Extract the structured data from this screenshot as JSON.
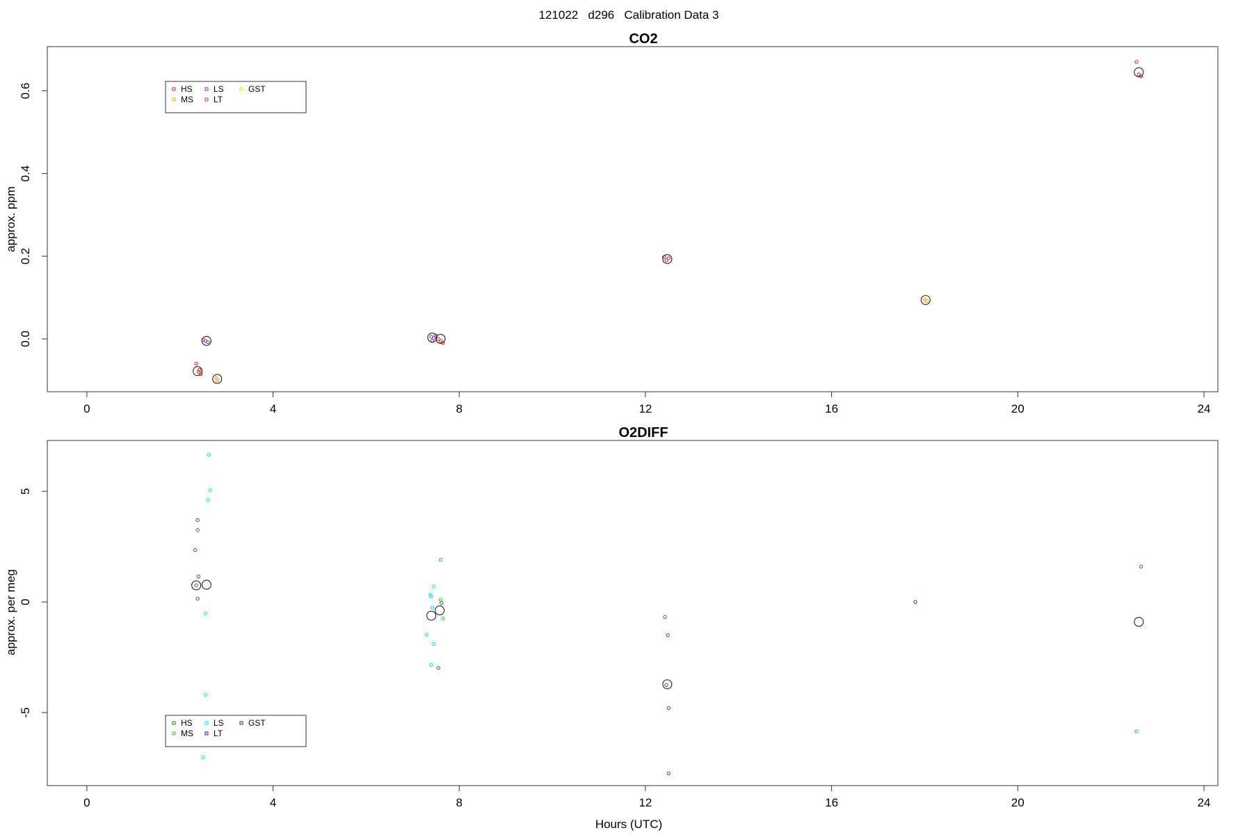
{
  "figure_title": "121022   d296   Calibration Data 3",
  "chart_data": [
    {
      "type": "scatter",
      "title": "CO2",
      "xlabel": "",
      "ylabel": "approx. ppm",
      "xlim": [
        -0.85,
        24.3
      ],
      "ylim": [
        -0.128,
        0.707
      ],
      "xticks": [
        0,
        4,
        8,
        12,
        16,
        20,
        24
      ],
      "yticks": [
        0.0,
        0.2,
        0.4,
        0.6
      ],
      "ytick_labels": [
        "0.0",
        "0.2",
        "0.4",
        "0.6"
      ],
      "legend": {
        "placement": "top-left",
        "entries": [
          {
            "label": "HS",
            "color": "#e41a1c"
          },
          {
            "label": "MS",
            "color": "#ff9f00"
          },
          {
            "label": "LS",
            "color": "#a020f0"
          },
          {
            "label": "LT",
            "color": "#c0392b"
          },
          {
            "label": "GST",
            "color": "#ffd700"
          }
        ]
      },
      "series": [
        {
          "name": "HS",
          "color": "#e41a1c",
          "points": [
            [
              2.35,
              -0.06
            ],
            [
              2.4,
              -0.08
            ],
            [
              2.45,
              -0.085
            ],
            [
              2.42,
              -0.075
            ],
            [
              7.6,
              -0.005
            ],
            [
              7.65,
              -0.01
            ],
            [
              12.45,
              0.19
            ],
            [
              12.5,
              0.195
            ],
            [
              22.55,
              0.67
            ],
            [
              22.65,
              0.635
            ],
            [
              22.6,
              0.64
            ]
          ]
        },
        {
          "name": "MS",
          "color": "#ff9f00",
          "points": [
            [
              2.78,
              -0.095
            ],
            [
              2.8,
              -0.1
            ],
            [
              18.0,
              0.095
            ],
            [
              18.05,
              0.092
            ]
          ]
        },
        {
          "name": "LS",
          "color": "#a020f0",
          "points": [
            [
              2.55,
              -0.005
            ],
            [
              2.6,
              -0.008
            ],
            [
              7.4,
              0.005
            ],
            [
              7.45,
              0.002
            ],
            [
              7.5,
              0.008
            ],
            [
              7.42,
              -0.005
            ]
          ]
        },
        {
          "name": "LT",
          "color": "#c0392b",
          "points": [
            [
              2.5,
              -0.002
            ],
            [
              7.55,
              0.0
            ],
            [
              12.4,
              0.198
            ]
          ]
        },
        {
          "name": "GST",
          "color": "#ffd700",
          "points": []
        }
      ],
      "means": [
        [
          2.38,
          -0.078
        ],
        [
          2.57,
          -0.005
        ],
        [
          2.8,
          -0.097
        ],
        [
          7.42,
          0.003
        ],
        [
          7.6,
          0.0
        ],
        [
          12.47,
          0.193
        ],
        [
          18.02,
          0.094
        ],
        [
          22.6,
          0.645
        ]
      ]
    },
    {
      "type": "scatter",
      "title": "O2DIFF",
      "xlabel": "Hours (UTC)",
      "ylabel": "approx. per meg",
      "xlim": [
        -0.85,
        24.3
      ],
      "ylim": [
        -8.3,
        7.3
      ],
      "xticks": [
        0,
        4,
        8,
        12,
        16,
        20,
        24
      ],
      "yticks": [
        -5,
        0,
        5
      ],
      "ytick_labels": [
        "-5",
        "0",
        "5"
      ],
      "legend": {
        "placement": "bottom-left",
        "entries": [
          {
            "label": "HS",
            "color": "#1f7a1f"
          },
          {
            "label": "MS",
            "color": "#22cc22"
          },
          {
            "label": "LS",
            "color": "#00e5e5"
          },
          {
            "label": "LT",
            "color": "#1010cc"
          },
          {
            "label": "GST",
            "color": "#2020a0"
          }
        ]
      },
      "series": [
        {
          "name": "HS",
          "color": "#1f7a1f",
          "points": [
            [
              2.38,
              3.7
            ],
            [
              2.38,
              3.25
            ],
            [
              2.33,
              2.35
            ],
            [
              2.4,
              1.15
            ],
            [
              2.38,
              0.15
            ],
            [
              2.35,
              0.75
            ],
            [
              7.62,
              -0.05
            ],
            [
              7.55,
              -2.98
            ],
            [
              12.42,
              -0.68
            ],
            [
              12.48,
              -1.5
            ],
            [
              12.45,
              -3.75
            ],
            [
              12.5,
              -4.8
            ],
            [
              12.5,
              -7.75
            ],
            [
              22.65,
              1.6
            ]
          ]
        },
        {
          "name": "MS",
          "color": "#22cc22",
          "points": [
            [
              7.6,
              1.9
            ],
            [
              7.6,
              0.1
            ],
            [
              7.65,
              -0.75
            ],
            [
              22.55,
              -5.85
            ]
          ]
        },
        {
          "name": "LS",
          "color": "#00e5e5",
          "points": [
            [
              2.62,
              6.65
            ],
            [
              2.65,
              5.05
            ],
            [
              2.6,
              4.6
            ],
            [
              2.55,
              -0.52
            ],
            [
              2.55,
              -4.2
            ],
            [
              2.5,
              -7.02
            ],
            [
              7.38,
              0.32
            ],
            [
              7.45,
              0.7
            ],
            [
              7.4,
              0.25
            ],
            [
              7.42,
              -0.25
            ],
            [
              7.3,
              -1.48
            ],
            [
              7.45,
              -1.9
            ],
            [
              7.4,
              -2.85
            ]
          ]
        },
        {
          "name": "LT",
          "color": "#1010cc",
          "points": []
        },
        {
          "name": "GST",
          "color": "#2020a0",
          "points": [
            [
              17.8,
              0.0
            ]
          ]
        }
      ],
      "means": [
        [
          2.35,
          0.75
        ],
        [
          2.57,
          0.78
        ],
        [
          7.4,
          -0.62
        ],
        [
          7.58,
          -0.38
        ],
        [
          12.47,
          -3.72
        ],
        [
          22.6,
          -0.9
        ]
      ]
    }
  ]
}
